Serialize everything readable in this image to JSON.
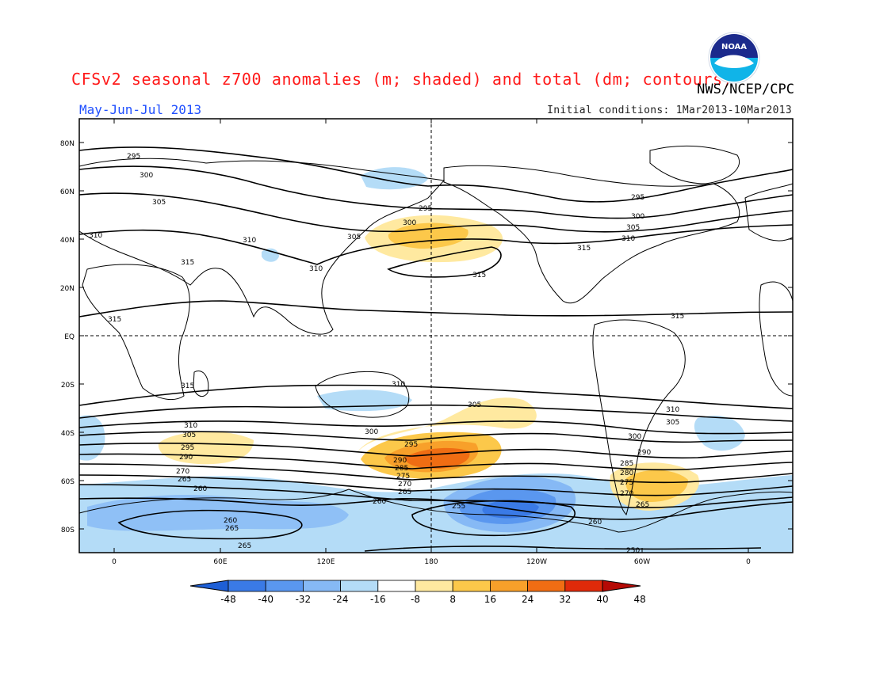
{
  "title": "CFSv2 seasonal z700 anomalies (m; shaded) and total (dm; contours)",
  "agency": "NWS/NCEP/CPC",
  "logo_text": "NOAA",
  "period": "May-Jun-Jul 2013",
  "initial_conditions": "Initial conditions: 1Mar2013-10Mar2013",
  "lat_labels": [
    "80N",
    "60N",
    "40N",
    "20N",
    "EQ",
    "20S",
    "40S",
    "60S",
    "80S"
  ],
  "lon_labels": [
    "0",
    "60E",
    "120E",
    "180",
    "120W",
    "60W",
    "0"
  ],
  "colorbar": {
    "ticks": [
      "-48",
      "-40",
      "-32",
      "-24",
      "-16",
      "-8",
      "8",
      "16",
      "24",
      "32",
      "40",
      "48"
    ],
    "colors": [
      "#1e5fd6",
      "#3a7ae6",
      "#5a97ef",
      "#86b9f5",
      "#b4dcf7",
      "#ffffff",
      "#ffe9a0",
      "#fcc84a",
      "#f8a02a",
      "#f06d13",
      "#e02a0a",
      "#b50a05"
    ]
  },
  "chart_data": {
    "type": "map",
    "variable": "z700",
    "anomaly_units": "m",
    "contour_units": "dm",
    "contour_labels": [
      "295",
      "300",
      "305",
      "310",
      "315",
      "285",
      "290",
      "280",
      "275",
      "270",
      "265",
      "260",
      "255",
      "250"
    ]
  }
}
